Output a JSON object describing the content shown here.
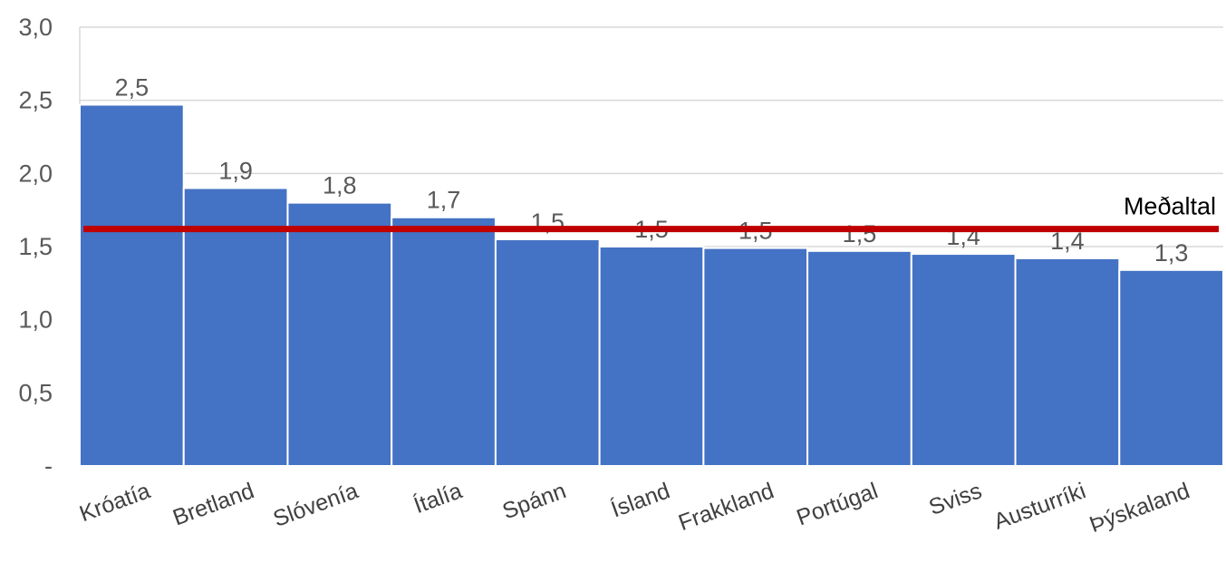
{
  "chart_data": {
    "type": "bar",
    "categories": [
      "Króatía",
      "Bretland",
      "Slóvenía",
      "Ítalía",
      "Spánn",
      "Ísland",
      "Frakkland",
      "Portúgal",
      "Sviss",
      "Austurríki",
      "Þýskaland"
    ],
    "values": [
      2.47,
      1.9,
      1.8,
      1.7,
      1.55,
      1.5,
      1.49,
      1.47,
      1.45,
      1.42,
      1.34
    ],
    "data_labels": [
      "2,5",
      "1,9",
      "1,8",
      "1,7",
      "1,5",
      "1,5",
      "1,5",
      "1,5",
      "1,4",
      "1,4",
      "1,3"
    ],
    "ylim": [
      0,
      3
    ],
    "yticks": [
      0,
      0.5,
      1,
      1.5,
      2,
      2.5,
      3
    ],
    "ytick_labels": [
      "-",
      "0,5",
      "1,0",
      "1,5",
      "2,0",
      "2,5",
      "3,0"
    ],
    "reference_line": {
      "label": "Meðaltal",
      "value": 1.62
    },
    "grid": true,
    "colors": {
      "bar": "#4472C4",
      "reference_line": "#C00000",
      "grid": "#D9D9D9"
    }
  }
}
